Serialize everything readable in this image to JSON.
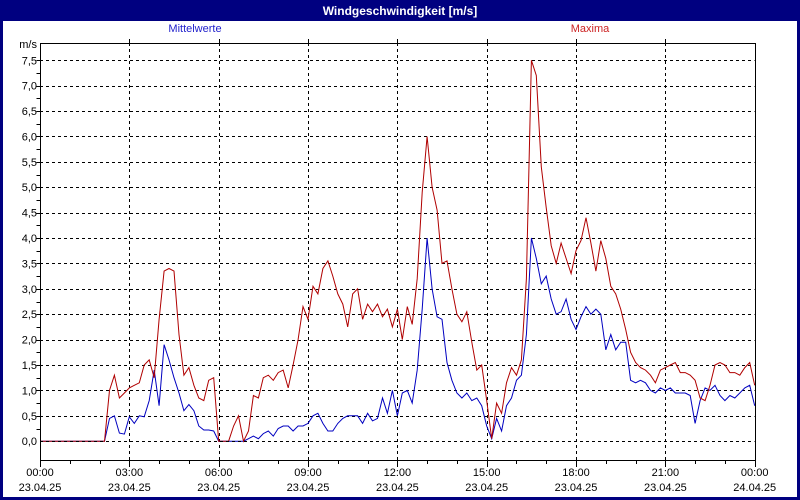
{
  "title": "Windgeschwindigkeit [m/s]",
  "legend": {
    "mean_label": "Mittelwerte",
    "max_label": "Maxima",
    "mean_label_color": "#2222cc",
    "max_label_color": "#cc2222"
  },
  "colors": {
    "title_bar_bg": "#000080",
    "title_text": "#ffffff",
    "frame_border": "#000080",
    "plot_border": "#000000",
    "grid": "#000000",
    "mean_line": "#0000c0",
    "max_line": "#b00000"
  },
  "chart_data": {
    "type": "line",
    "title": "Windgeschwindigkeit [m/s]",
    "ylabel": "m/s",
    "xlabel": "",
    "ylim": [
      -0.37,
      7.84
    ],
    "xlim_hours": [
      0,
      24
    ],
    "x_step_hours": 0.1666667,
    "grid": "dashed black, horizontal every 0.5 m/s, vertical every 3 h",
    "legend_position": "top",
    "y_tick_labels": [
      "0,0",
      "0,5",
      "1,0",
      "1,5",
      "2,0",
      "2,5",
      "3,0",
      "3,5",
      "4,0",
      "4,5",
      "5,0",
      "5,5",
      "6,0",
      "6,5",
      "7,0",
      "7,5"
    ],
    "x_ticks": [
      {
        "hour": 0,
        "time": "00:00",
        "date": "23.04.25"
      },
      {
        "hour": 3,
        "time": "03:00",
        "date": "23.04.25"
      },
      {
        "hour": 6,
        "time": "06:00",
        "date": "23.04.25"
      },
      {
        "hour": 9,
        "time": "09:00",
        "date": "23.04.25"
      },
      {
        "hour": 12,
        "time": "12:00",
        "date": "23.04.25"
      },
      {
        "hour": 15,
        "time": "15:00",
        "date": "23.04.25"
      },
      {
        "hour": 18,
        "time": "18:00",
        "date": "23.04.25"
      },
      {
        "hour": 21,
        "time": "21:00",
        "date": "23.04.25"
      },
      {
        "hour": 24,
        "time": "00:00",
        "date": "24.04.25"
      }
    ],
    "series": [
      {
        "name": "Mittelwerte",
        "color": "#0000c0",
        "values": [
          0,
          0,
          0,
          0,
          0,
          0,
          0,
          0,
          0,
          0,
          0,
          0,
          0,
          0,
          0.45,
          0.5,
          0.16,
          0.14,
          0.48,
          0.35,
          0.5,
          0.48,
          0.8,
          1.4,
          0.7,
          1.9,
          1.6,
          1.25,
          0.95,
          0.6,
          0.72,
          0.6,
          0.3,
          0.22,
          0.22,
          0.2,
          0,
          0,
          0,
          0,
          0,
          0,
          0.05,
          0.1,
          0.05,
          0.15,
          0.2,
          0.1,
          0.25,
          0.3,
          0.3,
          0.2,
          0.3,
          0.3,
          0.35,
          0.5,
          0.55,
          0.35,
          0.2,
          0.2,
          0.35,
          0.45,
          0.5,
          0.5,
          0.5,
          0.35,
          0.55,
          0.4,
          0.45,
          0.85,
          0.55,
          1.0,
          0.5,
          0.95,
          1.0,
          0.75,
          1.4,
          2.6,
          4.0,
          3.0,
          2.45,
          2.4,
          1.55,
          1.2,
          0.95,
          0.85,
          0.95,
          0.8,
          0.85,
          0.7,
          0.3,
          0.05,
          0.45,
          0.2,
          0.7,
          0.85,
          1.2,
          1.3,
          2.1,
          4.0,
          3.6,
          3.1,
          3.25,
          2.8,
          2.5,
          2.55,
          2.8,
          2.4,
          2.2,
          2.45,
          2.65,
          2.5,
          2.6,
          2.5,
          1.8,
          2.1,
          1.8,
          1.95,
          1.95,
          1.2,
          1.15,
          1.2,
          1.15,
          1.0,
          0.95,
          1.05,
          1.0,
          1.05,
          0.95,
          0.95,
          0.95,
          0.9,
          0.35,
          0.8,
          1.05,
          1.0,
          1.1,
          0.9,
          0.8,
          0.9,
          0.85,
          0.95,
          1.05,
          1.1,
          0.7
        ]
      },
      {
        "name": "Maxima",
        "color": "#b00000",
        "values": [
          0,
          0,
          0,
          0,
          0,
          0,
          0,
          0,
          0,
          0,
          0,
          0,
          0,
          0,
          1.0,
          1.3,
          0.85,
          0.95,
          1.05,
          1.1,
          1.15,
          1.5,
          1.6,
          1.25,
          2.4,
          3.35,
          3.4,
          3.35,
          2.1,
          1.3,
          1.45,
          1.1,
          0.85,
          0.8,
          1.2,
          1.25,
          0,
          0,
          0,
          0.3,
          0.5,
          0,
          0.2,
          0.9,
          0.85,
          1.25,
          1.3,
          1.2,
          1.35,
          1.4,
          1.05,
          1.5,
          2.0,
          2.65,
          2.4,
          3.05,
          2.9,
          3.4,
          3.55,
          3.25,
          2.9,
          2.7,
          2.25,
          2.9,
          3.0,
          2.4,
          2.7,
          2.55,
          2.7,
          2.45,
          2.6,
          2.25,
          2.6,
          2.0,
          2.65,
          2.3,
          3.2,
          4.9,
          6.0,
          5.0,
          4.55,
          3.5,
          3.55,
          3.0,
          2.5,
          2.35,
          2.55,
          1.95,
          1.4,
          1.5,
          0.8,
          0.05,
          0.75,
          0.55,
          1.15,
          1.45,
          1.3,
          1.6,
          3.2,
          7.5,
          7.2,
          5.4,
          4.6,
          3.85,
          3.5,
          3.9,
          3.6,
          3.3,
          3.75,
          3.95,
          4.4,
          3.9,
          3.35,
          3.95,
          3.6,
          3.05,
          2.9,
          2.6,
          2.2,
          1.75,
          1.55,
          1.45,
          1.4,
          1.3,
          1.15,
          1.4,
          1.45,
          1.5,
          1.55,
          1.35,
          1.35,
          1.3,
          1.2,
          0.85,
          0.8,
          1.1,
          1.5,
          1.55,
          1.5,
          1.35,
          1.35,
          1.3,
          1.45,
          1.55,
          1.1
        ]
      }
    ]
  }
}
